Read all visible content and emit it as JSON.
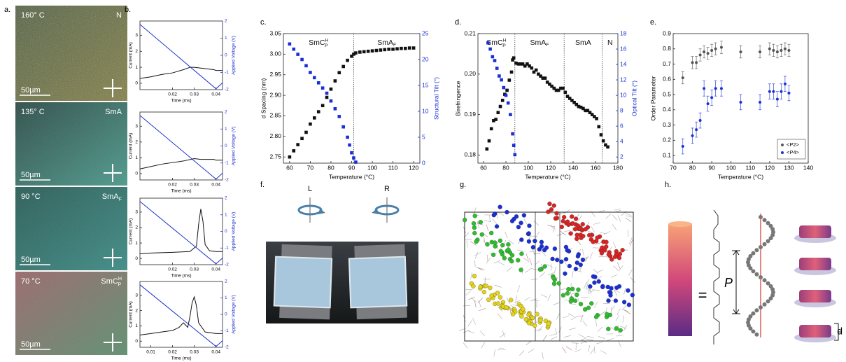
{
  "panel_a": {
    "label": "a.",
    "micrographs": [
      {
        "temperature": "160° C",
        "phase": {
          "text": "N"
        },
        "scale": "50µm"
      },
      {
        "temperature": "135° C",
        "phase": {
          "text": "SmA"
        },
        "scale": "50µm"
      },
      {
        "temperature": "90 °C",
        "phase": {
          "text": "SmA",
          "sub": "F"
        },
        "scale": "50µm"
      },
      {
        "temperature": "70 °C",
        "phase": {
          "text": "SmC",
          "sup": "H",
          "sub": "P"
        },
        "scale": "50µm"
      }
    ]
  },
  "panel_f": {
    "label": "f.",
    "left": "L",
    "right": "R"
  },
  "panel_g": {
    "label": "g."
  },
  "panel_h": {
    "label": "h.",
    "equals": "=",
    "pitch": "P",
    "spacing": "d"
  },
  "chart_data": [
    {
      "type": "line",
      "panel": "b.",
      "xlabel": "Time (ms)",
      "ylabel": "Current (mA)",
      "y2label": "Applied Voltage (V)",
      "xlim": [
        0.005,
        0.043
      ],
      "xticks": [
        0.02,
        0.03,
        0.04
      ],
      "ylim": [
        -0.4,
        3.9
      ],
      "yticks": [
        0,
        1,
        2,
        3
      ],
      "y2lim": [
        -2,
        2
      ],
      "y2ticks": [
        -2,
        -1,
        0,
        1,
        2
      ],
      "series": [
        {
          "color": "#111111",
          "x": [
            0.005,
            0.01,
            0.015,
            0.02,
            0.025,
            0.028,
            0.03,
            0.033,
            0.036,
            0.039,
            0.04,
            0.043
          ],
          "values": [
            0.3,
            0.4,
            0.55,
            0.65,
            0.85,
            1.0,
            1.0,
            0.95,
            0.9,
            0.85,
            0.8,
            0.8
          ]
        },
        {
          "color": "#2233cc",
          "axis": "y2",
          "x": [
            0.005,
            0.04,
            0.043
          ],
          "values": [
            1.8,
            -1.95,
            -1.6
          ]
        }
      ]
    },
    {
      "type": "line",
      "xlabel": "Time (ms)",
      "ylabel": "Current (mA)",
      "y2label": "Applied Voltage (V)",
      "xlim": [
        0.005,
        0.043
      ],
      "xticks": [
        0.02,
        0.03,
        0.04
      ],
      "ylim": [
        -0.4,
        3.9
      ],
      "yticks": [
        0,
        1,
        2,
        3
      ],
      "y2lim": [
        -2,
        2
      ],
      "y2ticks": [
        -2,
        -1,
        0,
        1,
        2
      ],
      "series": [
        {
          "color": "#111111",
          "x": [
            0.005,
            0.01,
            0.015,
            0.02,
            0.025,
            0.03,
            0.033,
            0.036,
            0.039,
            0.04,
            0.043
          ],
          "values": [
            0.3,
            0.45,
            0.6,
            0.7,
            0.8,
            0.95,
            0.9,
            0.9,
            0.9,
            0.85,
            0.85
          ]
        },
        {
          "color": "#2233cc",
          "axis": "y2",
          "x": [
            0.005,
            0.04,
            0.043
          ],
          "values": [
            1.8,
            -1.95,
            -1.6
          ]
        }
      ]
    },
    {
      "type": "line",
      "xlabel": "Time (ms)",
      "ylabel": "Current (mA)",
      "y2label": "Applied Voltage (V)",
      "xlim": [
        0.005,
        0.043
      ],
      "xticks": [
        0.02,
        0.03,
        0.04
      ],
      "ylim": [
        -0.4,
        3.9
      ],
      "yticks": [
        0,
        1,
        2,
        3
      ],
      "y2lim": [
        -2,
        2
      ],
      "y2ticks": [
        -2,
        -1,
        0,
        1,
        2
      ],
      "series": [
        {
          "color": "#111111",
          "x": [
            0.005,
            0.01,
            0.02,
            0.028,
            0.031,
            0.032,
            0.033,
            0.034,
            0.035,
            0.037,
            0.04,
            0.043
          ],
          "values": [
            0.3,
            0.35,
            0.4,
            0.45,
            0.8,
            2.2,
            3.2,
            2.4,
            0.9,
            0.5,
            0.45,
            0.45
          ]
        },
        {
          "color": "#2233cc",
          "axis": "y2",
          "x": [
            0.005,
            0.04,
            0.043
          ],
          "values": [
            1.8,
            -1.95,
            -1.6
          ]
        }
      ]
    },
    {
      "type": "line",
      "xlabel": "Time (ms)",
      "ylabel": "Current (mA)",
      "y2label": "Applied Voltage (V)",
      "xlim": [
        0.005,
        0.043
      ],
      "xticks": [
        0.01,
        0.02,
        0.03,
        0.04
      ],
      "ylim": [
        -0.4,
        3.9
      ],
      "yticks": [
        0,
        1,
        2,
        3
      ],
      "y2lim": [
        -2,
        2
      ],
      "y2ticks": [
        -2,
        -1,
        0,
        1,
        2
      ],
      "series": [
        {
          "color": "#111111",
          "x": [
            0.005,
            0.01,
            0.015,
            0.02,
            0.023,
            0.025,
            0.027,
            0.028,
            0.029,
            0.03,
            0.031,
            0.032,
            0.035,
            0.04,
            0.043
          ],
          "values": [
            0.4,
            0.5,
            0.6,
            0.7,
            0.9,
            1.2,
            0.9,
            1.6,
            2.5,
            2.9,
            2.3,
            1.2,
            0.6,
            0.5,
            0.5
          ]
        },
        {
          "color": "#2233cc",
          "axis": "y2",
          "x": [
            0.005,
            0.04,
            0.043
          ],
          "values": [
            1.8,
            -1.95,
            -1.6
          ]
        }
      ]
    },
    {
      "type": "scatter",
      "panel": "c.",
      "xlabel": "Temperature (°C)",
      "ylabel": "d Spacing (nm)",
      "y2label": "Structural Tilt (°)",
      "xlim": [
        57,
        123
      ],
      "xticks": [
        60,
        70,
        80,
        90,
        100,
        110,
        120
      ],
      "ylim": [
        2.735,
        3.05
      ],
      "yticks": [
        2.75,
        {
          "value": 2.8,
          "label": "2.80"
        },
        2.85,
        {
          "value": 2.9,
          "label": "2.90"
        },
        2.95,
        {
          "value": 3,
          "label": "3.00"
        },
        3.05
      ],
      "y2lim": [
        0,
        25
      ],
      "y2ticks": [
        0,
        5,
        10,
        15,
        20,
        25
      ],
      "vlines": [
        91
      ],
      "phases": [
        {
          "text": "SmC",
          "sup": "H",
          "sub": "P"
        },
        {
          "text": "SmA",
          "sub": "F"
        }
      ],
      "series": [
        {
          "color": "#111111",
          "x": [
            60,
            62,
            64,
            66,
            68,
            70,
            72,
            74,
            76,
            78,
            80,
            82,
            84,
            86,
            88,
            90,
            91,
            92,
            94,
            96,
            98,
            100,
            102,
            104,
            106,
            108,
            110,
            112,
            114,
            116,
            118,
            120
          ],
          "values": [
            2.75,
            2.765,
            2.78,
            2.795,
            2.81,
            2.83,
            2.845,
            2.86,
            2.875,
            2.895,
            2.915,
            2.935,
            2.955,
            2.97,
            2.985,
            2.995,
            3.0,
            3.003,
            3.005,
            3.006,
            3.007,
            3.008,
            3.009,
            3.01,
            3.011,
            3.012,
            3.012,
            3.013,
            3.014,
            3.014,
            3.015,
            3.015
          ]
        },
        {
          "color": "#1a2fd6",
          "axis": "y2",
          "x": [
            60,
            62,
            64,
            66,
            68,
            70,
            72,
            74,
            76,
            78,
            80,
            82,
            84,
            86,
            88,
            89,
            90,
            91,
            92
          ],
          "values": [
            23,
            22,
            21,
            20,
            18.8,
            17.5,
            16.5,
            15.5,
            14.5,
            13.5,
            12,
            10.5,
            9,
            7,
            5,
            3.5,
            2,
            1,
            0.2
          ]
        }
      ]
    },
    {
      "type": "scatter",
      "panel": "d.",
      "xlabel": "Temperature (°C)",
      "ylabel": "Birefringence",
      "y2label": "Optical Tilt (°)",
      "xlim": [
        55,
        180
      ],
      "xticks": [
        60,
        80,
        100,
        120,
        140,
        160,
        180
      ],
      "ylim": [
        0.178,
        0.21
      ],
      "yticks": [
        0.18,
        0.19,
        {
          "value": 0.2,
          "label": "0.20"
        },
        0.21
      ],
      "y2lim": [
        1.2,
        18
      ],
      "y2ticks": [
        2,
        4,
        6,
        8,
        10,
        12,
        14,
        16,
        18
      ],
      "vlines": [
        88,
        132,
        166
      ],
      "phases": [
        {
          "text": "SmC",
          "sup": "H",
          "sub": "P"
        },
        {
          "text": "SmA",
          "sub": "F"
        },
        {
          "text": "SmA"
        },
        {
          "text": "N"
        }
      ],
      "series": [
        {
          "color": "#111111",
          "x": [
            63,
            65,
            67,
            69,
            71,
            73,
            75,
            77,
            79,
            81,
            83,
            85,
            86,
            87,
            89,
            91,
            93,
            95,
            97,
            99,
            101,
            103,
            105,
            107,
            109,
            111,
            113,
            115,
            117,
            119,
            121,
            123,
            125,
            127,
            129,
            131,
            133,
            135,
            137,
            139,
            141,
            143,
            145,
            147,
            149,
            151,
            153,
            155,
            157,
            159,
            161,
            163,
            165,
            167,
            169,
            171
          ],
          "values": [
            0.1815,
            0.1835,
            0.1865,
            0.1885,
            0.1888,
            0.1905,
            0.192,
            0.1935,
            0.195,
            0.196,
            0.1985,
            0.2005,
            0.2035,
            0.204,
            0.2027,
            0.2025,
            0.2025,
            0.2025,
            0.202,
            0.2025,
            0.202,
            0.2015,
            0.2005,
            0.201,
            0.2,
            0.1995,
            0.199,
            0.199,
            0.198,
            0.1975,
            0.197,
            0.1965,
            0.196,
            0.196,
            0.1965,
            0.1965,
            0.1955,
            0.1945,
            0.194,
            0.1935,
            0.193,
            0.1925,
            0.192,
            0.1918,
            0.1915,
            0.191,
            0.191,
            0.1905,
            0.19,
            0.1895,
            0.189,
            0.187,
            0.185,
            0.1835,
            0.1825,
            0.182
          ]
        },
        {
          "color": "#1a2fd6",
          "axis": "y2",
          "x": [
            64,
            66,
            68,
            70,
            72,
            74,
            76,
            78,
            80,
            82,
            84,
            86,
            87,
            88
          ],
          "values": [
            16.8,
            16,
            15,
            14.5,
            13.5,
            12.5,
            12,
            11,
            10,
            9,
            7.5,
            5,
            3.5,
            2.3
          ]
        }
      ]
    },
    {
      "type": "errorbar",
      "panel": "e.",
      "xlabel": "Temperature (°C)",
      "ylabel": "Order Parameter",
      "legend": "lower right",
      "xlim": [
        70,
        140
      ],
      "xticks": [
        70,
        80,
        90,
        100,
        110,
        120,
        130,
        140
      ],
      "ylim": [
        0.05,
        0.9
      ],
      "yticks": [
        0.1,
        0.2,
        0.3,
        0.4,
        0.5,
        0.6,
        0.7,
        0.8,
        0.9
      ],
      "series": [
        {
          "name": "<P2>",
          "color": "#555555",
          "x": [
            75,
            80,
            82,
            84,
            86,
            88,
            90,
            92,
            95,
            105,
            115,
            120,
            122,
            124,
            126,
            128,
            130
          ],
          "values": [
            0.61,
            0.71,
            0.71,
            0.76,
            0.78,
            0.77,
            0.79,
            0.8,
            0.81,
            0.78,
            0.78,
            0.8,
            0.79,
            0.78,
            0.79,
            0.8,
            0.79
          ],
          "errors": [
            0.04,
            0.04,
            0.04,
            0.04,
            0.04,
            0.04,
            0.04,
            0.04,
            0.04,
            0.04,
            0.04,
            0.04,
            0.04,
            0.04,
            0.04,
            0.04,
            0.04
          ]
        },
        {
          "name": "<P4>",
          "color": "#1a2fd6",
          "x": [
            75,
            80,
            82,
            84,
            86,
            88,
            90,
            92,
            95,
            105,
            115,
            120,
            122,
            124,
            126,
            128,
            130
          ],
          "values": [
            0.16,
            0.23,
            0.27,
            0.33,
            0.54,
            0.44,
            0.48,
            0.54,
            0.54,
            0.45,
            0.45,
            0.52,
            0.52,
            0.47,
            0.52,
            0.57,
            0.51
          ],
          "errors": [
            0.05,
            0.05,
            0.05,
            0.05,
            0.05,
            0.05,
            0.05,
            0.05,
            0.05,
            0.05,
            0.05,
            0.05,
            0.05,
            0.05,
            0.05,
            0.05,
            0.05
          ]
        }
      ]
    }
  ]
}
